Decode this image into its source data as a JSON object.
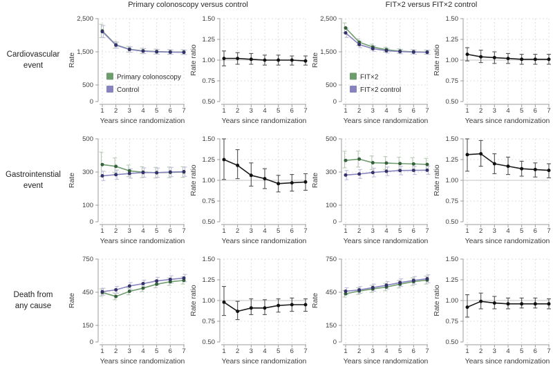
{
  "figure": {
    "group_titles": [
      "Primary colonoscopy versus control",
      "FIT×2 versus FIT×2 control"
    ],
    "row_labels": [
      "Cardiovascular\nevent",
      "Gastrointenstial\nevent",
      "Death from\nany cause"
    ],
    "xlabel": "Years since randomization",
    "colors": {
      "green_line": "#6f9c6f",
      "green_marker": "#34603a",
      "green_error": "#b7cab4",
      "purple_line": "#8683bf",
      "purple_marker": "#343268",
      "purple_error": "#bfbddb",
      "black": "#1a1a1a",
      "grid": "#dcdcdc",
      "spine": "#9b9b9b",
      "refline": "#cfcfcf"
    }
  },
  "chart_data": [
    {
      "id": "cardiovascular-rate-colonoscopy",
      "type": "line",
      "ylabel": "Rate",
      "xlabel": "Years since randomization",
      "x": [
        1,
        2,
        3,
        4,
        5,
        6,
        7
      ],
      "ylim": [
        0,
        2500
      ],
      "yticks": [
        0,
        500,
        1500,
        2500
      ],
      "ytick_labels": [
        "0",
        "500",
        "1,500",
        "2,500"
      ],
      "legend": true,
      "series": [
        {
          "name": "Primary colonoscopy",
          "line": "#6f9c6f",
          "marker": "#34603a",
          "error": "#b7cab4",
          "values": [
            2130,
            1710,
            1578,
            1528,
            1507,
            1497,
            1492
          ],
          "lo": [
            1930,
            1610,
            1490,
            1448,
            1432,
            1425,
            1420
          ],
          "hi": [
            2330,
            1810,
            1666,
            1608,
            1582,
            1569,
            1564
          ]
        },
        {
          "name": "Control",
          "line": "#8683bf",
          "marker": "#343268",
          "error": "#bfbddb",
          "values": [
            2110,
            1700,
            1570,
            1520,
            1500,
            1490,
            1485
          ],
          "lo": [
            1925,
            1608,
            1488,
            1445,
            1430,
            1423,
            1418
          ],
          "hi": [
            2295,
            1792,
            1652,
            1595,
            1570,
            1557,
            1552
          ]
        }
      ]
    },
    {
      "id": "cardiovascular-ratio-colonoscopy",
      "type": "line",
      "ylabel": "Rate ratio",
      "xlabel": "Years since randomization",
      "x": [
        1,
        2,
        3,
        4,
        5,
        6,
        7
      ],
      "ylim": [
        0.5,
        1.5
      ],
      "yticks": [
        0.5,
        0.75,
        1.0,
        1.25,
        1.5
      ],
      "ytick_labels": [
        "0.50",
        "0.75",
        "1.00",
        "1.25",
        "1.50"
      ],
      "refline": 1.0,
      "series": [
        {
          "name": "Rate ratio",
          "line": "#1a1a1a",
          "marker": "#111111",
          "error": "#4f4f4f",
          "values": [
            1.02,
            1.02,
            1.01,
            1.0,
            1.0,
            1.0,
            0.99
          ],
          "lo": [
            0.93,
            0.95,
            0.95,
            0.94,
            0.94,
            0.94,
            0.94
          ],
          "hi": [
            1.11,
            1.09,
            1.08,
            1.06,
            1.06,
            1.05,
            1.05
          ]
        }
      ]
    },
    {
      "id": "cardiovascular-rate-fit",
      "type": "line",
      "ylabel": "Rate",
      "xlabel": "Years since randomization",
      "x": [
        1,
        2,
        3,
        4,
        5,
        6,
        7
      ],
      "ylim": [
        0,
        2500
      ],
      "yticks": [
        0,
        500,
        1500,
        2500
      ],
      "ytick_labels": [
        "0",
        "500",
        "1,500",
        "2,500"
      ],
      "legend": true,
      "series": [
        {
          "name": "FIT×2",
          "line": "#6f9c6f",
          "marker": "#34603a",
          "error": "#b7cab4",
          "values": [
            2220,
            1790,
            1645,
            1565,
            1520,
            1500,
            1492
          ],
          "lo": [
            2070,
            1690,
            1560,
            1490,
            1452,
            1435,
            1428
          ],
          "hi": [
            2370,
            1890,
            1730,
            1640,
            1588,
            1565,
            1556
          ]
        },
        {
          "name": "FIT×2 control",
          "line": "#8683bf",
          "marker": "#343268",
          "error": "#bfbddb",
          "values": [
            2070,
            1720,
            1595,
            1535,
            1505,
            1492,
            1485
          ],
          "lo": [
            1930,
            1625,
            1515,
            1465,
            1440,
            1428,
            1422
          ],
          "hi": [
            2210,
            1815,
            1675,
            1605,
            1570,
            1556,
            1548
          ]
        }
      ]
    },
    {
      "id": "cardiovascular-ratio-fit",
      "type": "line",
      "ylabel": "Rate ratio",
      "xlabel": "Years since randomization",
      "x": [
        1,
        2,
        3,
        4,
        5,
        6,
        7
      ],
      "ylim": [
        0.5,
        1.5
      ],
      "yticks": [
        0.5,
        0.75,
        1.0,
        1.25,
        1.5
      ],
      "ytick_labels": [
        "0.50",
        "0.75",
        "1.00",
        "1.25",
        "1.50"
      ],
      "refline": 1.0,
      "series": [
        {
          "name": "Rate ratio",
          "line": "#1a1a1a",
          "marker": "#111111",
          "error": "#4f4f4f",
          "values": [
            1.07,
            1.04,
            1.03,
            1.02,
            1.01,
            1.01,
            1.01
          ],
          "lo": [
            0.99,
            0.97,
            0.96,
            0.96,
            0.95,
            0.95,
            0.95
          ],
          "hi": [
            1.15,
            1.12,
            1.1,
            1.08,
            1.07,
            1.07,
            1.07
          ]
        }
      ]
    },
    {
      "id": "gastro-rate-colonoscopy",
      "type": "line",
      "ylabel": "Rate",
      "xlabel": "Years since randomization",
      "x": [
        1,
        2,
        3,
        4,
        5,
        6,
        7
      ],
      "ylim": [
        0,
        500
      ],
      "yticks": [
        0,
        100,
        300,
        500
      ],
      "ytick_labels": [
        "0",
        "100",
        "300",
        "500"
      ],
      "series": [
        {
          "name": "Primary colonoscopy",
          "line": "#6f9c6f",
          "marker": "#34603a",
          "error": "#b7cab4",
          "values": [
            345,
            334,
            307,
            299,
            296,
            298,
            300
          ],
          "lo": [
            272,
            296,
            272,
            266,
            264,
            266,
            268
          ],
          "hi": [
            420,
            385,
            342,
            332,
            328,
            330,
            332
          ]
        },
        {
          "name": "Control",
          "line": "#8683bf",
          "marker": "#343268",
          "error": "#bfbddb",
          "values": [
            277,
            284,
            291,
            297,
            296,
            300,
            302
          ],
          "lo": [
            249,
            256,
            263,
            269,
            268,
            272,
            274
          ],
          "hi": [
            305,
            312,
            319,
            325,
            324,
            328,
            330
          ]
        }
      ]
    },
    {
      "id": "gastro-ratio-colonoscopy",
      "type": "line",
      "ylabel": "Rate ratio",
      "xlabel": "Years since randomization",
      "x": [
        1,
        2,
        3,
        4,
        5,
        6,
        7
      ],
      "ylim": [
        0.5,
        1.5
      ],
      "yticks": [
        0.5,
        0.75,
        1.0,
        1.25,
        1.5
      ],
      "ytick_labels": [
        "0.50",
        "0.75",
        "1.00",
        "1.25",
        "1.50"
      ],
      "refline": 1.0,
      "series": [
        {
          "name": "Rate ratio",
          "line": "#1a1a1a",
          "marker": "#111111",
          "error": "#4f4f4f",
          "values": [
            1.25,
            1.18,
            1.06,
            1.02,
            0.96,
            0.97,
            0.98
          ],
          "lo": [
            1.01,
            1.02,
            0.93,
            0.9,
            0.86,
            0.87,
            0.88
          ],
          "hi": [
            1.5,
            1.37,
            1.21,
            1.14,
            1.06,
            1.07,
            1.08
          ]
        }
      ]
    },
    {
      "id": "gastro-rate-fit",
      "type": "line",
      "ylabel": "Rate",
      "xlabel": "Years since randomization",
      "x": [
        1,
        2,
        3,
        4,
        5,
        6,
        7
      ],
      "ylim": [
        0,
        500
      ],
      "yticks": [
        0,
        100,
        300,
        500
      ],
      "ytick_labels": [
        "0",
        "100",
        "300",
        "500"
      ],
      "series": [
        {
          "name": "FIT×2",
          "line": "#6f9c6f",
          "marker": "#34603a",
          "error": "#b7cab4",
          "values": [
            370,
            378,
            356,
            354,
            351,
            349,
            346
          ],
          "lo": [
            325,
            330,
            315,
            315,
            313,
            312,
            310
          ],
          "hi": [
            425,
            426,
            397,
            393,
            389,
            386,
            382
          ]
        },
        {
          "name": "FIT×2 control",
          "line": "#8683bf",
          "marker": "#343268",
          "error": "#bfbddb",
          "values": [
            282,
            288,
            297,
            304,
            309,
            310,
            311
          ],
          "lo": [
            254,
            261,
            271,
            278,
            283,
            285,
            286
          ],
          "hi": [
            310,
            315,
            323,
            330,
            335,
            335,
            336
          ]
        }
      ]
    },
    {
      "id": "gastro-ratio-fit",
      "type": "line",
      "ylabel": "Rate ratio",
      "xlabel": "Years since randomization",
      "x": [
        1,
        2,
        3,
        4,
        5,
        6,
        7
      ],
      "ylim": [
        0.5,
        1.5
      ],
      "yticks": [
        0.5,
        0.75,
        1.0,
        1.25,
        1.5
      ],
      "ytick_labels": [
        "0.50",
        "0.75",
        "1.00",
        "1.25",
        "1.50"
      ],
      "refline": 1.0,
      "series": [
        {
          "name": "Rate ratio",
          "line": "#1a1a1a",
          "marker": "#111111",
          "error": "#4f4f4f",
          "values": [
            1.31,
            1.32,
            1.2,
            1.17,
            1.14,
            1.13,
            1.12
          ],
          "lo": [
            1.11,
            1.17,
            1.08,
            1.07,
            1.05,
            1.04,
            1.03
          ],
          "hi": [
            1.5,
            1.48,
            1.32,
            1.28,
            1.23,
            1.21,
            1.2
          ]
        }
      ]
    },
    {
      "id": "death-rate-colonoscopy",
      "type": "line",
      "ylabel": "Rate",
      "xlabel": "Years since randomization",
      "x": [
        1,
        2,
        3,
        4,
        5,
        6,
        7
      ],
      "ylim": [
        0,
        750
      ],
      "yticks": [
        0,
        150,
        450,
        750
      ],
      "ytick_labels": [
        "0",
        "150",
        "450",
        "750"
      ],
      "series": [
        {
          "name": "Primary colonoscopy",
          "line": "#6f9c6f",
          "marker": "#34603a",
          "error": "#b7cab4",
          "values": [
            448,
            412,
            458,
            487,
            523,
            545,
            557
          ],
          "lo": [
            415,
            382,
            427,
            455,
            490,
            512,
            524
          ],
          "hi": [
            481,
            442,
            489,
            519,
            556,
            578,
            590
          ]
        },
        {
          "name": "Control",
          "line": "#8683bf",
          "marker": "#343268",
          "error": "#bfbddb",
          "values": [
            455,
            472,
            506,
            528,
            552,
            566,
            578
          ],
          "lo": [
            424,
            441,
            474,
            496,
            519,
            533,
            545
          ],
          "hi": [
            486,
            503,
            538,
            560,
            585,
            599,
            611
          ]
        }
      ]
    },
    {
      "id": "death-ratio-colonoscopy",
      "type": "line",
      "ylabel": "Rate ratio",
      "xlabel": "Years since randomization",
      "x": [
        1,
        2,
        3,
        4,
        5,
        6,
        7
      ],
      "ylim": [
        0.5,
        1.5
      ],
      "yticks": [
        0.5,
        0.75,
        1.0,
        1.25,
        1.5
      ],
      "ytick_labels": [
        "0.50",
        "0.75",
        "1.00",
        "1.25",
        "1.50"
      ],
      "refline": 1.0,
      "series": [
        {
          "name": "Rate ratio",
          "line": "#1a1a1a",
          "marker": "#111111",
          "error": "#4f4f4f",
          "values": [
            0.98,
            0.87,
            0.91,
            0.91,
            0.94,
            0.95,
            0.95
          ],
          "lo": [
            0.82,
            0.77,
            0.83,
            0.83,
            0.86,
            0.87,
            0.87
          ],
          "hi": [
            1.17,
            0.99,
            1.02,
            1.01,
            1.02,
            1.03,
            1.02
          ]
        }
      ]
    },
    {
      "id": "death-rate-fit",
      "type": "line",
      "ylabel": "Rate",
      "xlabel": "Years since randomization",
      "x": [
        1,
        2,
        3,
        4,
        5,
        6,
        7
      ],
      "ylim": [
        0,
        750
      ],
      "yticks": [
        0,
        150,
        450,
        750
      ],
      "ytick_labels": [
        "0",
        "150",
        "450",
        "750"
      ],
      "series": [
        {
          "name": "FIT×2",
          "line": "#6f9c6f",
          "marker": "#34603a",
          "error": "#b7cab4",
          "values": [
            436,
            461,
            480,
            497,
            523,
            546,
            560
          ],
          "lo": [
            406,
            430,
            448,
            464,
            489,
            511,
            524
          ],
          "hi": [
            466,
            492,
            512,
            530,
            557,
            581,
            596
          ]
        },
        {
          "name": "FIT×2 control",
          "line": "#8683bf",
          "marker": "#343268",
          "error": "#bfbddb",
          "values": [
            459,
            471,
            492,
            513,
            537,
            557,
            572
          ],
          "lo": [
            428,
            440,
            460,
            480,
            503,
            522,
            536
          ],
          "hi": [
            490,
            502,
            524,
            546,
            571,
            592,
            608
          ]
        }
      ]
    },
    {
      "id": "death-ratio-fit",
      "type": "line",
      "ylabel": "Rate ratio",
      "xlabel": "Years since randomization",
      "x": [
        1,
        2,
        3,
        4,
        5,
        6,
        7
      ],
      "ylim": [
        0.5,
        1.5
      ],
      "yticks": [
        0.5,
        0.75,
        1.0,
        1.25,
        1.5
      ],
      "ytick_labels": [
        "0.50",
        "0.75",
        "1.00",
        "1.25",
        "1.50"
      ],
      "refline": 1.0,
      "series": [
        {
          "name": "Rate ratio",
          "line": "#1a1a1a",
          "marker": "#111111",
          "error": "#4f4f4f",
          "values": [
            0.92,
            0.99,
            0.97,
            0.96,
            0.96,
            0.96,
            0.96
          ],
          "lo": [
            0.8,
            0.9,
            0.9,
            0.9,
            0.91,
            0.91,
            0.9
          ],
          "hi": [
            1.07,
            1.09,
            1.05,
            1.03,
            1.03,
            1.03,
            1.02
          ]
        }
      ]
    }
  ]
}
